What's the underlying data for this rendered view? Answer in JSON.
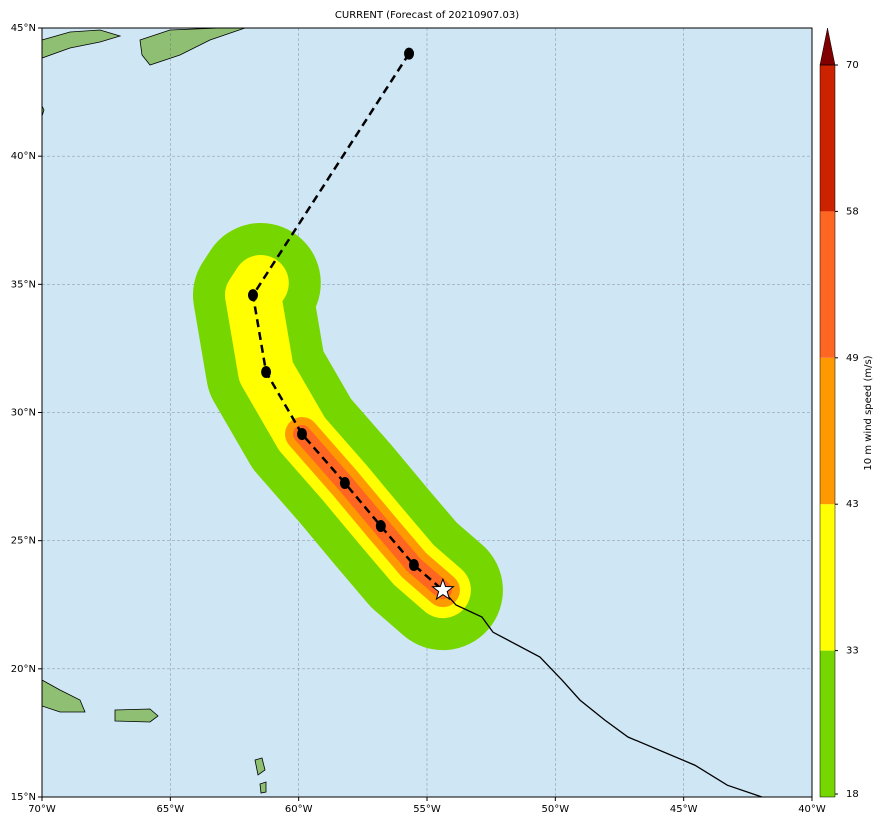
{
  "title": "CURRENT (Forecast of 20210907.03)",
  "map": {
    "lonlim": [
      -70,
      -40
    ],
    "latlim": [
      15,
      45
    ],
    "lon_ticks": [
      {
        "value": -70,
        "label": "70°W"
      },
      {
        "value": -65,
        "label": "65°W"
      },
      {
        "value": -60,
        "label": "60°W"
      },
      {
        "value": -55,
        "label": "55°W"
      },
      {
        "value": -50,
        "label": "50°W"
      },
      {
        "value": -45,
        "label": "45°W"
      },
      {
        "value": -40,
        "label": "40°W"
      }
    ],
    "lat_ticks": [
      {
        "value": 15,
        "label": "15°N"
      },
      {
        "value": 20,
        "label": "20°N"
      },
      {
        "value": 25,
        "label": "25°N"
      },
      {
        "value": 30,
        "label": "30°N"
      },
      {
        "value": 35,
        "label": "35°N"
      },
      {
        "value": 40,
        "label": "40°N"
      },
      {
        "value": 45,
        "label": "45°N"
      }
    ],
    "forecast_track": {
      "lon": [
        -55.7,
        -61.78,
        -61.27,
        -59.87,
        -58.2,
        -56.8,
        -55.51,
        -54.38
      ],
      "lat": [
        44.0,
        34.58,
        31.58,
        29.16,
        27.25,
        25.57,
        24.05,
        23.07
      ]
    },
    "past_track": {
      "lon": [
        -54.38,
        -53.87,
        -52.86,
        -52.43,
        -50.6,
        -49.74,
        -49.04,
        -48.07,
        -47.17,
        -44.56,
        -43.3,
        -41.95
      ],
      "lat": [
        23.07,
        22.49,
        22.02,
        21.43,
        20.46,
        19.56,
        18.78,
        18.0,
        17.34,
        16.24,
        15.46,
        15.0
      ]
    },
    "current_position": {
      "lon": -54.38,
      "lat": 23.07
    }
  },
  "colorbar": {
    "label": "10 m wind speed (m/s)",
    "ticks": [
      18,
      33,
      43,
      49,
      58,
      70
    ],
    "colors": [
      "#76d600",
      "#ffff00",
      "#ff9900",
      "#ff6622",
      "#cc2200"
    ],
    "extend_color": "#800000"
  }
}
